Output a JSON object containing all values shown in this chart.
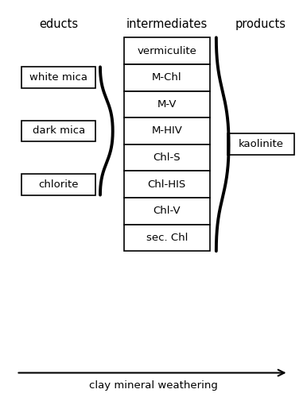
{
  "title_educts": "educts",
  "title_intermediates": "intermediates",
  "title_products": "products",
  "xlabel": "clay mineral weathering",
  "educts": [
    "white mica",
    "dark mica",
    "chlorite"
  ],
  "intermediates": [
    "vermiculite",
    "M-Chl",
    "M-V",
    "M-HIV",
    "Chl-S",
    "Chl-HIS",
    "Chl-V",
    "sec. Chl"
  ],
  "products": [
    "kaolinite"
  ],
  "bg_color": "#ffffff",
  "box_color": "#ffffff",
  "box_edge_color": "#000000",
  "text_color": "#000000",
  "font_size": 9.5,
  "header_font_size": 10.5
}
